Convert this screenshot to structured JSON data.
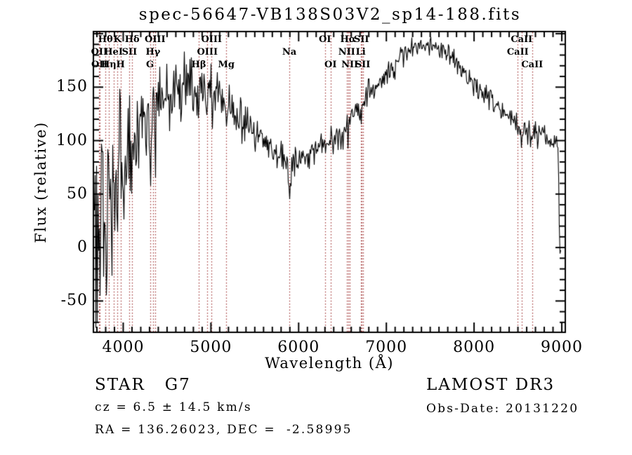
{
  "colors": {
    "spectrum": "#000000",
    "axis": "#000000",
    "line_marker": "#a03232",
    "background": "#ffffff"
  },
  "chart_data": {
    "type": "line",
    "title": "spec-56647-VB138S03V2_sp14-188.fits",
    "xlabel": "Wavelength (Å)",
    "ylabel": "Flux (relative)",
    "xlim": [
      3660,
      9040
    ],
    "ylim": [
      -79.3,
      202.0
    ],
    "xticks": [
      4000,
      5000,
      6000,
      7000,
      8000,
      9000
    ],
    "xtick_minor_step": 100,
    "yticks": [
      -50,
      0,
      50,
      100,
      150
    ],
    "ytick_minor_step": 10,
    "grid": false,
    "noise_seed": 1234567,
    "spectral_lines": [
      {
        "label": "Hθ",
        "wavelength": 3798,
        "row": 1
      },
      {
        "label": "K",
        "wavelength": 3934,
        "row": 1
      },
      {
        "label": "Hδ",
        "wavelength": 4102,
        "row": 1
      },
      {
        "label": "OIII",
        "wavelength": 4363,
        "row": 1
      },
      {
        "label": "OIII",
        "wavelength": 5007,
        "row": 1
      },
      {
        "label": "OI",
        "wavelength": 6300,
        "row": 1
      },
      {
        "label": "Hα",
        "wavelength": 6563,
        "row": 1
      },
      {
        "label": "SII",
        "wavelength": 6716,
        "row": 1
      },
      {
        "label": "CaII",
        "wavelength": 8542,
        "row": 1
      },
      {
        "label": "OII",
        "wavelength": 3727,
        "row": 2
      },
      {
        "label": "HeI",
        "wavelength": 3889,
        "row": 2
      },
      {
        "label": "SII",
        "wavelength": 4072,
        "row": 2
      },
      {
        "label": "Hγ",
        "wavelength": 4340,
        "row": 2
      },
      {
        "label": "OIII",
        "wavelength": 4959,
        "row": 2
      },
      {
        "label": "Na",
        "wavelength": 5894,
        "row": 2
      },
      {
        "label": "NII",
        "wavelength": 6548,
        "row": 2
      },
      {
        "label": "Li",
        "wavelength": 6708,
        "row": 2
      },
      {
        "label": "CaII",
        "wavelength": 8498,
        "row": 2
      },
      {
        "label": "OII",
        "wavelength": 3730,
        "row": 3
      },
      {
        "label": "Hη",
        "wavelength": 3835,
        "row": 3
      },
      {
        "label": "H",
        "wavelength": 3969,
        "row": 3
      },
      {
        "label": "G",
        "wavelength": 4305,
        "row": 3
      },
      {
        "label": "Hβ",
        "wavelength": 4861,
        "row": 3
      },
      {
        "label": "Mg",
        "wavelength": 5175,
        "row": 3
      },
      {
        "label": "OI",
        "wavelength": 6364,
        "row": 3
      },
      {
        "label": "NII",
        "wavelength": 6583,
        "row": 3
      },
      {
        "label": "SII",
        "wavelength": 6731,
        "row": 3
      },
      {
        "label": "CaII",
        "wavelength": 8662,
        "row": 3
      }
    ],
    "profile": [
      [
        3672,
        15,
        55
      ],
      [
        3750,
        30,
        55
      ],
      [
        3820,
        45,
        52
      ],
      [
        3900,
        55,
        48
      ],
      [
        3960,
        60,
        45
      ],
      [
        4050,
        90,
        38
      ],
      [
        4150,
        110,
        30
      ],
      [
        4250,
        118,
        26
      ],
      [
        4350,
        128,
        24
      ],
      [
        4450,
        140,
        20
      ],
      [
        4550,
        148,
        17
      ],
      [
        4650,
        152,
        16
      ],
      [
        4750,
        153,
        15
      ],
      [
        4850,
        148,
        14
      ],
      [
        4950,
        146,
        13
      ],
      [
        5050,
        143,
        12
      ],
      [
        5150,
        138,
        11
      ],
      [
        5250,
        130,
        10
      ],
      [
        5350,
        122,
        10
      ],
      [
        5450,
        113,
        9
      ],
      [
        5550,
        104,
        9
      ],
      [
        5650,
        96,
        8
      ],
      [
        5750,
        88,
        8
      ],
      [
        5850,
        80,
        8
      ],
      [
        5920,
        76,
        8
      ],
      [
        6000,
        80,
        7
      ],
      [
        6100,
        86,
        7
      ],
      [
        6200,
        92,
        7
      ],
      [
        6300,
        97,
        7
      ],
      [
        6400,
        104,
        6
      ],
      [
        6500,
        112,
        7
      ],
      [
        6600,
        122,
        6
      ],
      [
        6700,
        131,
        6
      ],
      [
        6800,
        141,
        6
      ],
      [
        6900,
        151,
        6
      ],
      [
        7000,
        162,
        6
      ],
      [
        7100,
        174,
        6
      ],
      [
        7200,
        183,
        5
      ],
      [
        7300,
        187,
        5
      ],
      [
        7400,
        189,
        5
      ],
      [
        7500,
        190,
        5
      ],
      [
        7600,
        187,
        5
      ],
      [
        7700,
        181,
        5
      ],
      [
        7800,
        171,
        5
      ],
      [
        7900,
        161,
        5
      ],
      [
        8000,
        152,
        5
      ],
      [
        8100,
        145,
        5
      ],
      [
        8200,
        138,
        5
      ],
      [
        8300,
        130,
        5
      ],
      [
        8400,
        122,
        5
      ],
      [
        8500,
        115,
        5
      ],
      [
        8600,
        109,
        5
      ],
      [
        8700,
        105,
        6
      ],
      [
        8800,
        101,
        7
      ],
      [
        8900,
        99,
        7
      ],
      [
        8955,
        100,
        6
      ],
      [
        8968,
        40,
        4
      ],
      [
        8978,
        -4,
        3
      ],
      [
        8995,
        -2,
        3
      ]
    ],
    "absorption_features": [
      [
        3934,
        45,
        10
      ],
      [
        3969,
        40,
        10
      ],
      [
        4305,
        22,
        15
      ],
      [
        4861,
        22,
        8
      ],
      [
        5175,
        18,
        12
      ],
      [
        5894,
        26,
        10
      ],
      [
        6563,
        18,
        7
      ],
      [
        8498,
        8,
        7
      ],
      [
        8542,
        12,
        8
      ],
      [
        8662,
        9,
        8
      ]
    ]
  },
  "annotations": {
    "classification": "STAR   G7",
    "cz": "cz = 6.5 ± 14.5 km/s",
    "ra_dec": "RA = 136.26023, DEC =  -2.58995",
    "survey": "LAMOST DR3",
    "obs_date": "Obs-Date: 20131220"
  }
}
